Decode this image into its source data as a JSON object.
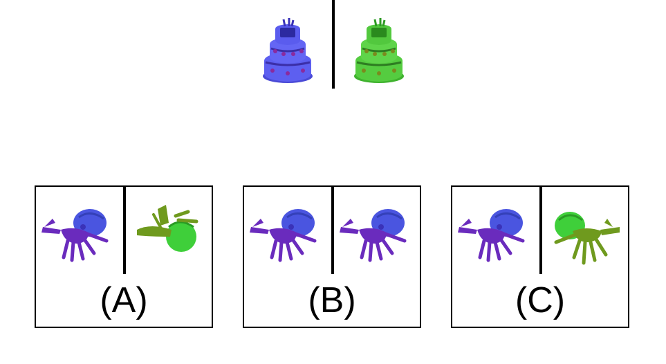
{
  "reference": {
    "left_object": "cake-icon",
    "right_object": "cake-icon",
    "left_color": "#5b5be6",
    "right_color": "#4fc83c"
  },
  "options": [
    {
      "label": "(A)",
      "left": {
        "object": "hermit-crab-icon",
        "color": "#6a2bbd",
        "shell": "#4a55e0"
      },
      "right": {
        "object": "hermit-crab-icon",
        "color": "#6f9a1e",
        "shell": "#3fcf3a"
      }
    },
    {
      "label": "(B)",
      "left": {
        "object": "hermit-crab-icon",
        "color": "#6a2bbd",
        "shell": "#4a55e0"
      },
      "right": {
        "object": "hermit-crab-icon",
        "color": "#6a2bbd",
        "shell": "#4a55e0"
      }
    },
    {
      "label": "(C)",
      "left": {
        "object": "hermit-crab-icon",
        "color": "#6a2bbd",
        "shell": "#4a55e0"
      },
      "right": {
        "object": "hermit-crab-icon",
        "color": "#6f9a1e",
        "shell": "#3fcf3a"
      }
    }
  ]
}
